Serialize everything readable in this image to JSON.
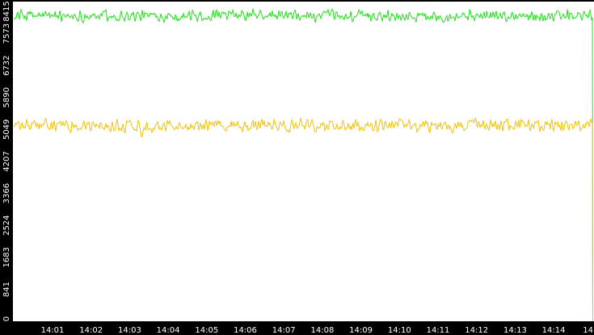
{
  "chart_data": {
    "type": "line",
    "title": "",
    "xlabel": "",
    "ylabel": "",
    "ylim": [
      0,
      8415
    ],
    "y_ticks": [
      "0",
      "841",
      "1683",
      "2524",
      "3366",
      "4207",
      "5049",
      "5890",
      "6732",
      "7573",
      "8415"
    ],
    "x_ticks": [
      "14:01",
      "14:02",
      "14:03",
      "14:04",
      "14:05",
      "14:06",
      "14:07",
      "14:08",
      "14:09",
      "14:10",
      "14:11",
      "14:12",
      "14:13",
      "14:14",
      "14"
    ],
    "x_range_minutes": [
      "14:00:10",
      "14:14:58"
    ],
    "grid": false,
    "legend": "none",
    "series": [
      {
        "color": "#22e01c",
        "base_value": 8040,
        "noise_amplitude": 180,
        "drop_at_end": [
          7600,
          4000,
          2600,
          0
        ]
      },
      {
        "color": "#f2c20a",
        "base_value": 5150,
        "noise_amplitude": 200,
        "drop_at_end": [
          5000,
          1500,
          0
        ]
      }
    ],
    "colors": {
      "background": "#ffffff",
      "frame": "#000000",
      "axis_text": "#ffffff"
    }
  }
}
